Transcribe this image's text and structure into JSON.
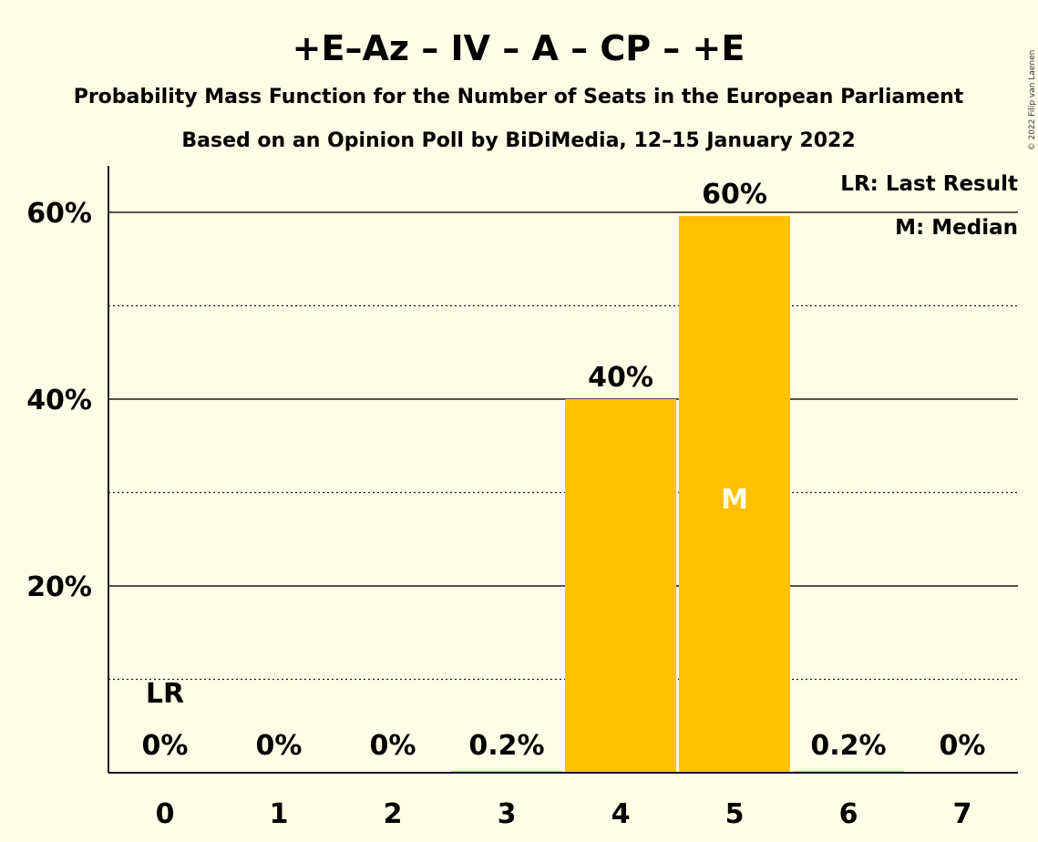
{
  "chart_data": {
    "type": "bar",
    "title": "+E–Az – IV – A – CP – +E",
    "subtitle_1": "Probability Mass Function for the Number of Seats in the European Parliament",
    "subtitle_2": "Based on an Opinion Poll by BiDiMedia, 12–15 January 2022",
    "categories": [
      "0",
      "1",
      "2",
      "3",
      "4",
      "5",
      "6",
      "7"
    ],
    "values": [
      0,
      0,
      0,
      0.2,
      40,
      59.6,
      0.2,
      0
    ],
    "data_labels": [
      "0%",
      "0%",
      "0%",
      "0.2%",
      "40%",
      "60%",
      "0.2%",
      "0%"
    ],
    "ylim": [
      0,
      65
    ],
    "yticks": [
      20,
      40,
      60
    ],
    "ytick_labels": [
      "20%",
      "40%",
      "60%"
    ],
    "minor_gridlines": [
      10,
      30,
      50
    ],
    "last_result_seats": 0,
    "last_result_marker": "LR",
    "median_seats": 5,
    "median_marker": "M",
    "legend": [
      "LR: Last Result",
      "M: Median"
    ],
    "legend_position": "top-right",
    "bar_color": "#ffc000",
    "grid": true,
    "copyright": "© 2022 Filip van Laenen"
  }
}
